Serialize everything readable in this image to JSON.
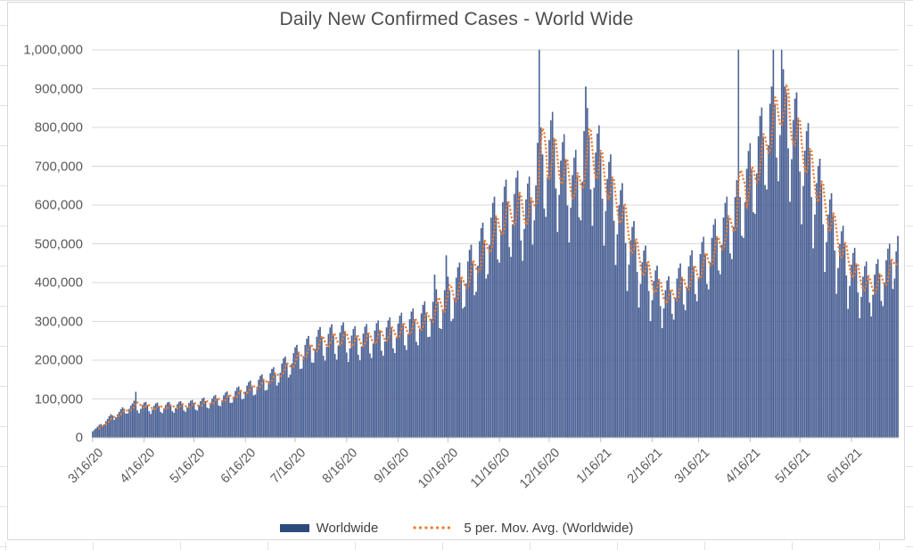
{
  "title": "Daily New Confirmed Cases - World Wide",
  "legend": {
    "series_label": "Worldwide",
    "moving_avg_label": "5 per. Mov. Avg. (Worldwide)"
  },
  "colors": {
    "bar_fill": "#4A6298",
    "bar_edge": "#31497E",
    "legend_bar_swatch": "#2C4B7E",
    "moving_avg": "#ED7D31",
    "gridline": "#D9D9D9",
    "axis_line": "#BFBFBF",
    "axis_text": "#595959",
    "title_text": "#4D4D4D",
    "legend_text": "#404040"
  },
  "chart_data": {
    "type": "bar",
    "title": "Daily New Confirmed Cases - World Wide",
    "xlabel": "",
    "ylabel": "",
    "ylim": [
      0,
      1000000
    ],
    "grid": "horizontal",
    "legend_position": "bottom",
    "y_tick_labels": [
      "0",
      "100,000",
      "200,000",
      "300,000",
      "400,000",
      "500,000",
      "600,000",
      "700,000",
      "800,000",
      "900,000",
      "1,000,000"
    ],
    "x_tick_labels": [
      "3/16/20",
      "4/16/20",
      "5/16/20",
      "6/16/20",
      "7/16/20",
      "8/16/20",
      "9/16/20",
      "10/16/20",
      "11/16/20",
      "12/16/20",
      "1/16/21",
      "2/16/21",
      "3/16/21",
      "4/16/21",
      "5/16/21",
      "6/16/21"
    ],
    "x_tick_day_index": [
      0,
      31,
      61,
      92,
      122,
      153,
      184,
      214,
      245,
      275,
      306,
      337,
      365,
      396,
      426,
      457
    ],
    "x_start_label": "3/16/20",
    "x_frequency": "daily",
    "series": [
      {
        "name": "Worldwide",
        "type": "bar",
        "values": [
          16000,
          20000,
          24000,
          28000,
          33000,
          35000,
          30000,
          34000,
          42000,
          48000,
          55000,
          60000,
          57000,
          46000,
          52000,
          60000,
          66000,
          73000,
          78000,
          74000,
          62000,
          62000,
          74000,
          82000,
          88000,
          95000,
          118000,
          70000,
          63000,
          74000,
          84000,
          90000,
          92000,
          84000,
          68000,
          61000,
          72000,
          82000,
          88000,
          90000,
          82000,
          66000,
          63000,
          74000,
          84000,
          90000,
          92000,
          84000,
          68000,
          64000,
          76000,
          86000,
          92000,
          94000,
          86000,
          70000,
          66000,
          78000,
          89000,
          95000,
          97000,
          89000,
          72000,
          70000,
          83000,
          94000,
          101000,
          103000,
          94000,
          77000,
          75000,
          88000,
          100000,
          107000,
          110000,
          101000,
          82000,
          81000,
          96000,
          109000,
          116000,
          119000,
          109000,
          89000,
          90000,
          106000,
          120000,
          129000,
          132000,
          121000,
          98000,
          100000,
          118000,
          134000,
          143000,
          147000,
          134000,
          109000,
          111000,
          131000,
          149000,
          159000,
          163000,
          149000,
          121000,
          123000,
          145000,
          166000,
          177000,
          181000,
          166000,
          134000,
          142000,
          167000,
          191000,
          204000,
          209000,
          191000,
          155000,
          162000,
          191000,
          218000,
          233000,
          239000,
          218000,
          177000,
          178000,
          210000,
          239000,
          255000,
          262000,
          239000,
          194000,
          193000,
          228000,
          260000,
          278000,
          285000,
          260000,
          211000,
          198000,
          234000,
          267000,
          284000,
          292000,
          267000,
          216000,
          201000,
          237000,
          271000,
          289000,
          297000,
          271000,
          219000,
          195000,
          230000,
          263000,
          280000,
          287000,
          263000,
          213000,
          199000,
          235000,
          268000,
          286000,
          293000,
          268000,
          217000,
          205000,
          242000,
          276000,
          295000,
          302000,
          276000,
          224000,
          211000,
          248000,
          284000,
          302000,
          310000,
          284000,
          230000,
          218000,
          258000,
          294000,
          314000,
          322000,
          294000,
          238000,
          226000,
          267000,
          305000,
          325000,
          333000,
          305000,
          247000,
          238000,
          281000,
          320000,
          342000,
          351000,
          320000,
          259000,
          260000,
          306000,
          350000,
          420000,
          382000,
          350000,
          282000,
          280000,
          330000,
          380000,
          470000,
          415000,
          380000,
          300000,
          306000,
          361000,
          412000,
          439000,
          451000,
          412000,
          333000,
          337000,
          397000,
          454000,
          484000,
          497000,
          454000,
          367000,
          376000,
          443000,
          506000,
          540000,
          554000,
          506000,
          410000,
          421000,
          497000,
          567000,
          605000,
          621000,
          567000,
          459000,
          451000,
          532000,
          607000,
          647000,
          665000,
          607000,
          491000,
          466000,
          550000,
          628000,
          670000,
          688000,
          628000,
          508000,
          456000,
          538000,
          614000,
          655000,
          673000,
          614000,
          497000,
          560000,
          650000,
          760000,
          1050000,
          800000,
          730000,
          590000,
          569000,
          672000,
          767000,
          818000,
          840000,
          767000,
          642000,
          530000,
          626000,
          714000,
          762000,
          782000,
          714000,
          598000,
          503000,
          593000,
          677000,
          722000,
          742000,
          677000,
          568000,
          560000,
          660000,
          790000,
          905000,
          850000,
          780000,
          640000,
          546000,
          644000,
          735000,
          784000,
          805000,
          735000,
          616000,
          495000,
          584000,
          667000,
          711000,
          730000,
          667000,
          559000,
          445000,
          524000,
          599000,
          638000,
          656000,
          599000,
          502000,
          378000,
          446000,
          509000,
          543000,
          558000,
          509000,
          427000,
          335000,
          396000,
          452000,
          482000,
          495000,
          452000,
          378000,
          300000,
          354000,
          404000,
          431000,
          443000,
          404000,
          339000,
          282000,
          333000,
          380000,
          405000,
          416000,
          380000,
          319000,
          304000,
          359000,
          410000,
          437000,
          449000,
          410000,
          343000,
          328000,
          386000,
          441000,
          470000,
          483000,
          441000,
          370000,
          351000,
          414000,
          473000,
          504000,
          518000,
          473000,
          396000,
          382000,
          451000,
          515000,
          549000,
          564000,
          515000,
          431000,
          421000,
          497000,
          567000,
          605000,
          621000,
          567000,
          475000,
          460000,
          543000,
          620000,
          664000,
          1000000,
          620000,
          520000,
          515000,
          607000,
          693000,
          739000,
          759000,
          693000,
          581000,
          577000,
          681000,
          777000,
          829000,
          851000,
          777000,
          651000,
          640000,
          754000,
          861000,
          905000,
          1010000,
          861000,
          722000,
          661000,
          780000,
          1005000,
          950000,
          905000,
          890000,
          746000,
          608000,
          718000,
          819000,
          874000,
          890000,
          819000,
          686000,
          550000,
          649000,
          740000,
          790000,
          811000,
          740000,
          620000,
          488000,
          575000,
          656000,
          700000,
          719000,
          656000,
          550000,
          427000,
          504000,
          575000,
          614000,
          630000,
          575000,
          482000,
          371000,
          437000,
          499000,
          532000,
          546000,
          499000,
          418000,
          332000,
          391000,
          446000,
          476000,
          489000,
          446000,
          374000,
          308000,
          363000,
          415000,
          442000,
          454000,
          415000,
          348000,
          312000,
          368000,
          420000,
          448000,
          460000,
          420000,
          352000,
          339000,
          400000,
          457000,
          487000,
          500000,
          457000,
          383000,
          410000,
          480000,
          520000
        ]
      },
      {
        "name": "5 per. Mov. Avg. (Worldwide)",
        "type": "dotted-line",
        "derived_from": "Worldwide",
        "derivation": "trailing 5-period moving average"
      }
    ]
  }
}
